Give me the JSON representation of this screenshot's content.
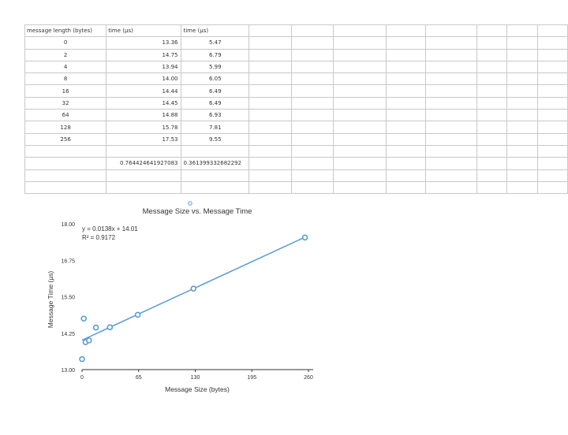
{
  "table": {
    "header": [
      "message length (bytes)",
      "time (µs)",
      "time (µs)"
    ],
    "rows": [
      [
        "0",
        "13.36",
        "5.47"
      ],
      [
        "2",
        "14.75",
        "6.79"
      ],
      [
        "4",
        "13.94",
        "5.99"
      ],
      [
        "8",
        "14.00",
        "6.05"
      ],
      [
        "16",
        "14.44",
        "6.49"
      ],
      [
        "32",
        "14.45",
        "6.49"
      ],
      [
        "64",
        "14.88",
        "6.93"
      ],
      [
        "128",
        "15.78",
        "7.81"
      ],
      [
        "256",
        "17.53",
        "9.55"
      ]
    ],
    "totals": [
      "",
      "0.764424641927083",
      "0.361399332682292"
    ]
  },
  "chart_data": {
    "type": "scatter",
    "title": "Message Size vs. Message Time",
    "xlabel": "Message Size (bytes)",
    "ylabel": "Message Time (µs)",
    "xlim": [
      0,
      260
    ],
    "ylim": [
      13.0,
      18.0
    ],
    "xticks": [
      "0",
      "65",
      "130",
      "195",
      "260"
    ],
    "yticks": [
      "13.00",
      "14.25",
      "15.50",
      "16.75",
      "18.00"
    ],
    "grid": false,
    "series": [
      {
        "x": [
          0,
          2,
          4,
          8,
          16,
          32,
          64,
          128,
          256
        ],
        "y": [
          13.36,
          14.75,
          13.94,
          14.0,
          14.44,
          14.45,
          14.88,
          15.78,
          17.53
        ]
      }
    ],
    "trendline": {
      "equation": "y = 0.0138x + 14.01",
      "r2": "R² = 0.9172",
      "slope": 0.0138,
      "intercept": 14.01
    },
    "color": "#5b9bd5"
  }
}
